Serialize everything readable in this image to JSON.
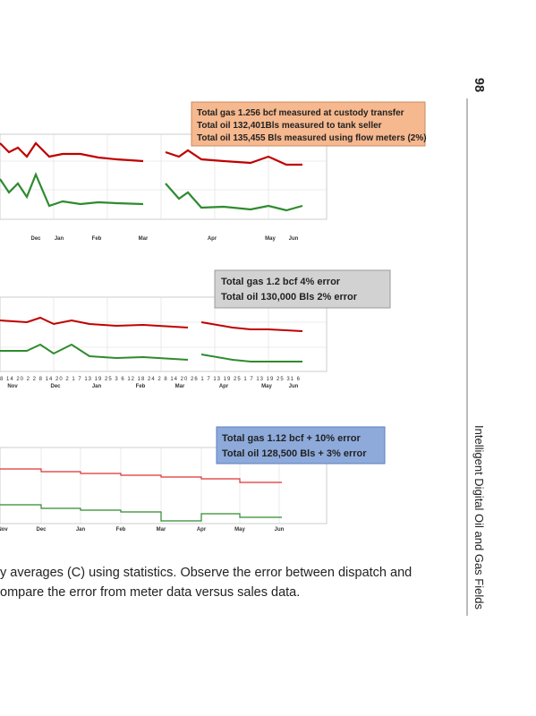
{
  "page_number": "98",
  "running_head": "Intelligent Digital Oil and Gas Fields",
  "figures": [
    {
      "box": [
        "Total gas 1.256 bcf measured at custody transfer",
        "Total oil 132,401Bls measured to tank seller",
        "Total oil 135,455 Bls measured using flow meters (2%)"
      ],
      "months": [
        "Dec",
        "Jan",
        "Feb",
        "Mar",
        "Apr",
        "May",
        "Jun"
      ]
    },
    {
      "box": [
        "Total gas 1.2 bcf 4% error",
        "Total oil 130,000 Bls  2% error"
      ],
      "days": "8 14 20 2 2 8 14 20 2 1 7 13 19 25 3 6 12 18 24 2 8 14 20 26 1 7 13 19 25 1 7 13 19 25 31 6",
      "months": [
        "Nov",
        "Dec",
        "Jan",
        "Feb",
        "Mar",
        "Apr",
        "May",
        "Jun"
      ]
    },
    {
      "box": [
        "Total gas 1.12 bcf + 10% error",
        "Total oil 128,500 Bls + 3% error"
      ],
      "months": [
        "Nov",
        "Dec",
        "Jan",
        "Feb",
        "Mar",
        "Apr",
        "May",
        "Jun"
      ]
    }
  ],
  "caption": [
    "y averages (C) using statistics. Observe the error between dispatch and",
    "ompare the error from meter data versus sales data."
  ]
}
